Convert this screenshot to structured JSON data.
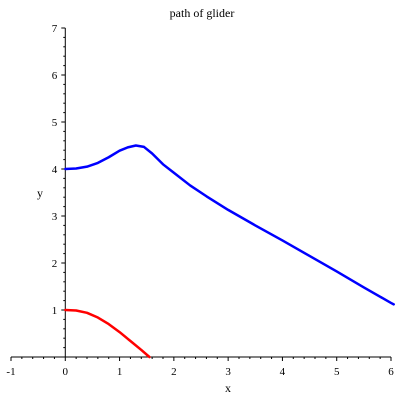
{
  "chart_data": {
    "type": "line",
    "title": "path of glider",
    "xlabel": "x",
    "ylabel": "y",
    "xlim": [
      -1,
      6
    ],
    "ylim": [
      0,
      7
    ],
    "grid": false,
    "x_ticks": [
      "-1",
      "0",
      "1",
      "2",
      "3",
      "4",
      "5",
      "6"
    ],
    "y_ticks": [
      "1",
      "2",
      "3",
      "4",
      "5",
      "6",
      "7"
    ],
    "series": [
      {
        "color": "#0000ff",
        "points": [
          [
            0.0,
            4.0
          ],
          [
            0.2,
            4.01
          ],
          [
            0.4,
            4.05
          ],
          [
            0.6,
            4.13
          ],
          [
            0.8,
            4.25
          ],
          [
            1.0,
            4.39
          ],
          [
            1.15,
            4.46
          ],
          [
            1.3,
            4.5
          ],
          [
            1.45,
            4.47
          ],
          [
            1.6,
            4.33
          ],
          [
            1.8,
            4.1
          ],
          [
            2.0,
            3.92
          ],
          [
            2.3,
            3.65
          ],
          [
            2.6,
            3.42
          ],
          [
            3.0,
            3.13
          ],
          [
            3.5,
            2.8
          ],
          [
            4.0,
            2.48
          ],
          [
            4.5,
            2.15
          ],
          [
            5.0,
            1.82
          ],
          [
            5.5,
            1.48
          ],
          [
            6.0,
            1.15
          ],
          [
            6.05,
            1.12
          ]
        ]
      },
      {
        "color": "#ff0000",
        "points": [
          [
            0.0,
            1.0
          ],
          [
            0.2,
            0.99
          ],
          [
            0.4,
            0.94
          ],
          [
            0.6,
            0.84
          ],
          [
            0.8,
            0.7
          ],
          [
            1.0,
            0.53
          ],
          [
            1.2,
            0.34
          ],
          [
            1.4,
            0.15
          ],
          [
            1.55,
            0.0
          ]
        ]
      }
    ]
  }
}
